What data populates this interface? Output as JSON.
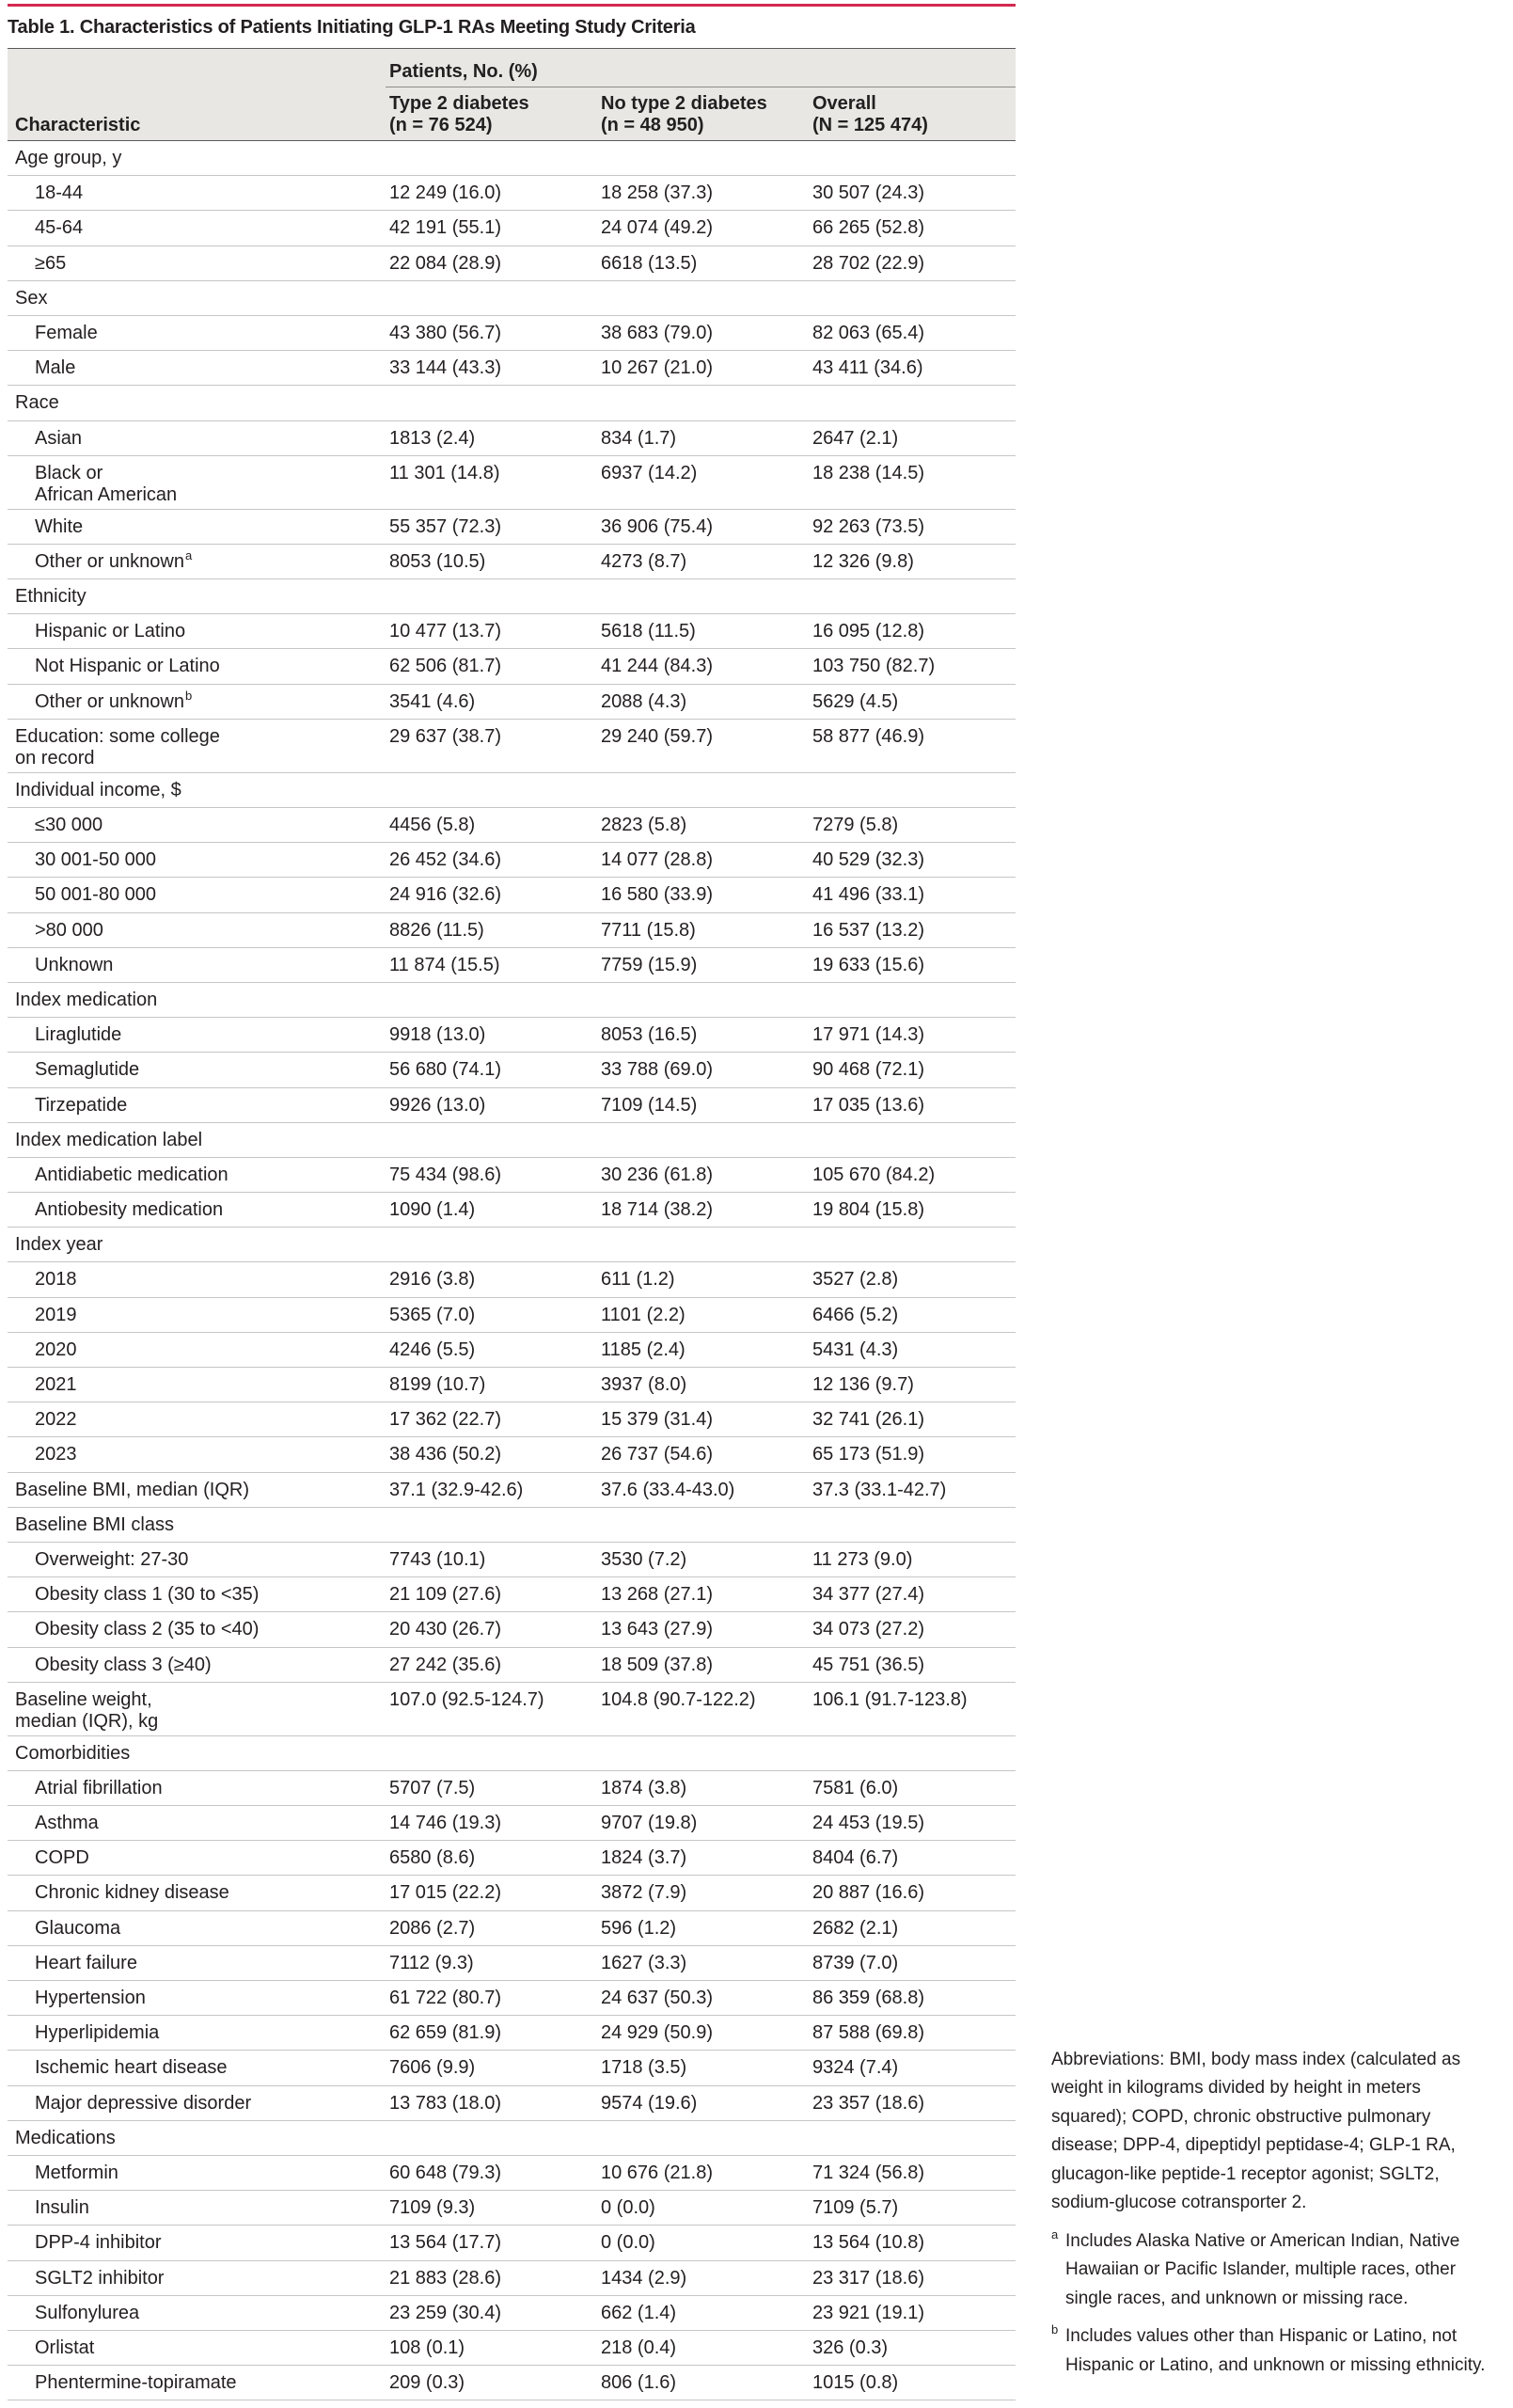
{
  "table": {
    "title": "Table 1. Characteristics of Patients Initiating GLP-1 RAs Meeting Study Criteria",
    "header": {
      "characteristic": "Characteristic",
      "group": "Patients, No. (%)",
      "columns": [
        "Type 2 diabetes\n(n = 76 524)",
        "No type 2 diabetes\n(n = 48 950)",
        "Overall\n(N = 125 474)"
      ]
    },
    "rows": [
      {
        "label": "Age group, y",
        "items": [
          {
            "label": "18-44",
            "values": [
              "12 249 (16.0)",
              "18 258 (37.3)",
              "30 507 (24.3)"
            ]
          },
          {
            "label": "45-64",
            "values": [
              "42 191 (55.1)",
              "24 074 (49.2)",
              "66 265 (52.8)"
            ]
          },
          {
            "label": "≥65",
            "values": [
              "22 084 (28.9)",
              "6618 (13.5)",
              "28 702 (22.9)"
            ]
          }
        ]
      },
      {
        "label": "Sex",
        "items": [
          {
            "label": "Female",
            "values": [
              "43 380 (56.7)",
              "38 683 (79.0)",
              "82 063 (65.4)"
            ]
          },
          {
            "label": "Male",
            "values": [
              "33 144 (43.3)",
              "10 267 (21.0)",
              "43 411 (34.6)"
            ]
          }
        ]
      },
      {
        "label": "Race",
        "items": [
          {
            "label": "Asian",
            "values": [
              "1813 (2.4)",
              "834 (1.7)",
              "2647 (2.1)"
            ]
          },
          {
            "label": "Black or\nAfrican American",
            "values": [
              "11 301 (14.8)",
              "6937 (14.2)",
              "18 238 (14.5)"
            ]
          },
          {
            "label": "White",
            "values": [
              "55 357 (72.3)",
              "36 906 (75.4)",
              "92 263 (73.5)"
            ]
          },
          {
            "label": "Other or unknown",
            "sup": "a",
            "values": [
              "8053 (10.5)",
              "4273 (8.7)",
              "12 326 (9.8)"
            ]
          }
        ]
      },
      {
        "label": "Ethnicity",
        "items": [
          {
            "label": "Hispanic or Latino",
            "values": [
              "10 477 (13.7)",
              "5618 (11.5)",
              "16 095 (12.8)"
            ]
          },
          {
            "label": "Not Hispanic or Latino",
            "values": [
              "62 506 (81.7)",
              "41 244 (84.3)",
              "103 750 (82.7)"
            ]
          },
          {
            "label": "Other or unknown",
            "sup": "b",
            "values": [
              "3541 (4.6)",
              "2088 (4.3)",
              "5629 (4.5)"
            ]
          }
        ]
      },
      {
        "label": "Education: some college\non record",
        "values": [
          "29 637 (38.7)",
          "29 240 (59.7)",
          "58 877 (46.9)"
        ]
      },
      {
        "label": "Individual income, $",
        "items": [
          {
            "label": "≤30 000",
            "values": [
              "4456 (5.8)",
              "2823 (5.8)",
              "7279 (5.8)"
            ]
          },
          {
            "label": "30 001-50 000",
            "values": [
              "26 452 (34.6)",
              "14 077 (28.8)",
              "40 529 (32.3)"
            ]
          },
          {
            "label": "50 001-80 000",
            "values": [
              "24 916 (32.6)",
              "16 580 (33.9)",
              "41 496 (33.1)"
            ]
          },
          {
            "label": ">80 000",
            "values": [
              "8826 (11.5)",
              "7711 (15.8)",
              "16 537 (13.2)"
            ]
          },
          {
            "label": "Unknown",
            "values": [
              "11 874 (15.5)",
              "7759 (15.9)",
              "19 633 (15.6)"
            ]
          }
        ]
      },
      {
        "label": "Index medication",
        "items": [
          {
            "label": "Liraglutide",
            "values": [
              "9918 (13.0)",
              "8053 (16.5)",
              "17 971 (14.3)"
            ]
          },
          {
            "label": "Semaglutide",
            "values": [
              "56 680 (74.1)",
              "33 788 (69.0)",
              "90 468 (72.1)"
            ]
          },
          {
            "label": "Tirzepatide",
            "values": [
              "9926 (13.0)",
              "7109 (14.5)",
              "17 035 (13.6)"
            ]
          }
        ]
      },
      {
        "label": "Index medication label",
        "items": [
          {
            "label": "Antidiabetic medication",
            "values": [
              "75 434 (98.6)",
              "30 236 (61.8)",
              "105 670 (84.2)"
            ]
          },
          {
            "label": "Antiobesity medication",
            "values": [
              "1090 (1.4)",
              "18 714 (38.2)",
              "19 804 (15.8)"
            ]
          }
        ]
      },
      {
        "label": "Index year",
        "items": [
          {
            "label": "2018",
            "values": [
              "2916 (3.8)",
              "611 (1.2)",
              "3527 (2.8)"
            ]
          },
          {
            "label": "2019",
            "values": [
              "5365 (7.0)",
              "1101 (2.2)",
              "6466 (5.2)"
            ]
          },
          {
            "label": "2020",
            "values": [
              "4246 (5.5)",
              "1185 (2.4)",
              "5431 (4.3)"
            ]
          },
          {
            "label": "2021",
            "values": [
              "8199 (10.7)",
              "3937 (8.0)",
              "12 136 (9.7)"
            ]
          },
          {
            "label": "2022",
            "values": [
              "17 362 (22.7)",
              "15 379 (31.4)",
              "32 741 (26.1)"
            ]
          },
          {
            "label": "2023",
            "values": [
              "38 436 (50.2)",
              "26 737 (54.6)",
              "65 173 (51.9)"
            ]
          }
        ]
      },
      {
        "label": "Baseline BMI, median (IQR)",
        "values": [
          "37.1 (32.9-42.6)",
          "37.6 (33.4-43.0)",
          "37.3 (33.1-42.7)"
        ]
      },
      {
        "label": "Baseline BMI class",
        "items": [
          {
            "label": "Overweight: 27-30",
            "values": [
              "7743 (10.1)",
              "3530 (7.2)",
              "11 273 (9.0)"
            ]
          },
          {
            "label": "Obesity class 1 (30 to <35)",
            "values": [
              "21 109 (27.6)",
              "13 268 (27.1)",
              "34 377 (27.4)"
            ]
          },
          {
            "label": "Obesity class 2 (35 to <40)",
            "values": [
              "20 430 (26.7)",
              "13 643 (27.9)",
              "34 073 (27.2)"
            ]
          },
          {
            "label": "Obesity class 3 (≥40)",
            "values": [
              "27 242 (35.6)",
              "18 509 (37.8)",
              "45 751 (36.5)"
            ]
          }
        ]
      },
      {
        "label": "Baseline weight,\nmedian (IQR), kg",
        "values": [
          "107.0 (92.5-124.7)",
          "104.8 (90.7-122.2)",
          "106.1 (91.7-123.8)"
        ]
      },
      {
        "label": "Comorbidities",
        "items": [
          {
            "label": "Atrial fibrillation",
            "values": [
              "5707 (7.5)",
              "1874 (3.8)",
              "7581 (6.0)"
            ]
          },
          {
            "label": "Asthma",
            "values": [
              "14 746 (19.3)",
              "9707 (19.8)",
              "24 453 (19.5)"
            ]
          },
          {
            "label": "COPD",
            "values": [
              "6580 (8.6)",
              "1824 (3.7)",
              "8404 (6.7)"
            ]
          },
          {
            "label": "Chronic kidney disease",
            "values": [
              "17 015 (22.2)",
              "3872 (7.9)",
              "20 887 (16.6)"
            ]
          },
          {
            "label": "Glaucoma",
            "values": [
              "2086 (2.7)",
              "596 (1.2)",
              "2682 (2.1)"
            ]
          },
          {
            "label": "Heart failure",
            "values": [
              "7112 (9.3)",
              "1627 (3.3)",
              "8739 (7.0)"
            ]
          },
          {
            "label": "Hypertension",
            "values": [
              "61 722 (80.7)",
              "24 637 (50.3)",
              "86 359 (68.8)"
            ]
          },
          {
            "label": "Hyperlipidemia",
            "values": [
              "62 659 (81.9)",
              "24 929 (50.9)",
              "87 588 (69.8)"
            ]
          },
          {
            "label": "Ischemic heart disease",
            "values": [
              "7606 (9.9)",
              "1718 (3.5)",
              "9324 (7.4)"
            ]
          },
          {
            "label": "Major depressive disorder",
            "values": [
              "13 783 (18.0)",
              "9574 (19.6)",
              "23 357 (18.6)"
            ]
          }
        ]
      },
      {
        "label": "Medications",
        "items": [
          {
            "label": "Metformin",
            "values": [
              "60 648 (79.3)",
              "10 676 (21.8)",
              "71 324 (56.8)"
            ]
          },
          {
            "label": "Insulin",
            "values": [
              "7109 (9.3)",
              "0 (0.0)",
              "7109 (5.7)"
            ]
          },
          {
            "label": "DPP-4 inhibitor",
            "values": [
              "13 564 (17.7)",
              "0 (0.0)",
              "13 564 (10.8)"
            ]
          },
          {
            "label": "SGLT2 inhibitor",
            "values": [
              "21 883 (28.6)",
              "1434 (2.9)",
              "23 317 (18.6)"
            ]
          },
          {
            "label": "Sulfonylurea",
            "values": [
              "23 259 (30.4)",
              "662 (1.4)",
              "23 921 (19.1)"
            ]
          },
          {
            "label": "Orlistat",
            "values": [
              "108 (0.1)",
              "218 (0.4)",
              "326 (0.3)"
            ]
          },
          {
            "label": "Phentermine-topiramate",
            "values": [
              "209 (0.3)",
              "806 (1.6)",
              "1015 (0.8)"
            ]
          }
        ]
      }
    ]
  },
  "footnotes": {
    "abbreviations": "Abbreviations: BMI, body mass index (calculated as weight in kilograms divided by height in meters squared); COPD, chronic obstructive pulmonary disease; DPP-4, dipeptidyl peptidase-4; GLP-1 RA, glucagon-like peptide-1 receptor agonist; SGLT2, sodium-glucose cotransporter 2.",
    "notes": [
      {
        "marker": "a",
        "text": "Includes Alaska Native or American Indian, Native Hawaiian or Pacific Islander, multiple races, other single races, and unknown or missing race."
      },
      {
        "marker": "b",
        "text": "Includes values other than Hispanic or Latino, not Hispanic or Latino, and unknown or missing ethnicity."
      }
    ]
  }
}
